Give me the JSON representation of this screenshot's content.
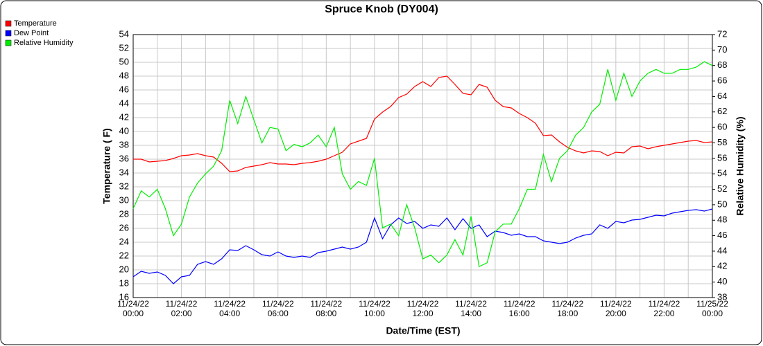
{
  "chart_data": {
    "type": "line",
    "title": "Spruce Knob (DY004)",
    "x_label": "Date/Time (EST)",
    "y_label": "Temperature ( F)",
    "y2_label": "Relative Humidity (%)",
    "grid": true,
    "legend": "top-left",
    "xlim": [
      "2022-11-24T00:00",
      "2022-11-25T00:00"
    ],
    "xticks": [
      {
        "value": "2022-11-24T00:00",
        "label": "11/24/22 00:00"
      },
      {
        "value": "2022-11-24T02:00",
        "label": "11/24/22 02:00"
      },
      {
        "value": "2022-11-24T04:00",
        "label": "11/24/22 04:00"
      },
      {
        "value": "2022-11-24T06:00",
        "label": "11/24/22 06:00"
      },
      {
        "value": "2022-11-24T08:00",
        "label": "11/24/22 08:00"
      },
      {
        "value": "2022-11-24T10:00",
        "label": "11/24/22 10:00"
      },
      {
        "value": "2022-11-24T12:00",
        "label": "11/24/22 12:00"
      },
      {
        "value": "2022-11-24T14:00",
        "label": "11/24/22 14:00"
      },
      {
        "value": "2022-11-24T16:00",
        "label": "11/24/22 16:00"
      },
      {
        "value": "2022-11-24T18:00",
        "label": "11/24/22 18:00"
      },
      {
        "value": "2022-11-24T20:00",
        "label": "11/24/22 20:00"
      },
      {
        "value": "2022-11-24T22:00",
        "label": "11/24/22 22:00"
      },
      {
        "value": "2022-11-25T00:00",
        "label": "11/25/22 00:00"
      }
    ],
    "ylim": [
      16,
      54
    ],
    "yticks": [
      16,
      18,
      20,
      22,
      24,
      26,
      28,
      30,
      32,
      34,
      36,
      38,
      40,
      42,
      44,
      46,
      48,
      50,
      52,
      54
    ],
    "y2lim": [
      38,
      72
    ],
    "y2ticks": [
      38,
      40,
      42,
      44,
      46,
      48,
      50,
      52,
      54,
      56,
      58,
      60,
      62,
      64,
      66,
      68,
      70,
      72
    ],
    "x": [
      "2022-11-24T00:00",
      "2022-11-24T00:20",
      "2022-11-24T00:40",
      "2022-11-24T01:00",
      "2022-11-24T01:20",
      "2022-11-24T01:40",
      "2022-11-24T02:00",
      "2022-11-24T02:20",
      "2022-11-24T02:40",
      "2022-11-24T03:00",
      "2022-11-24T03:20",
      "2022-11-24T03:40",
      "2022-11-24T04:00",
      "2022-11-24T04:20",
      "2022-11-24T04:40",
      "2022-11-24T05:00",
      "2022-11-24T05:20",
      "2022-11-24T05:40",
      "2022-11-24T06:00",
      "2022-11-24T06:20",
      "2022-11-24T06:40",
      "2022-11-24T07:00",
      "2022-11-24T07:20",
      "2022-11-24T07:40",
      "2022-11-24T08:00",
      "2022-11-24T08:20",
      "2022-11-24T08:40",
      "2022-11-24T09:00",
      "2022-11-24T09:20",
      "2022-11-24T09:40",
      "2022-11-24T10:00",
      "2022-11-24T10:20",
      "2022-11-24T10:40",
      "2022-11-24T11:00",
      "2022-11-24T11:20",
      "2022-11-24T11:40",
      "2022-11-24T12:00",
      "2022-11-24T12:20",
      "2022-11-24T12:40",
      "2022-11-24T13:00",
      "2022-11-24T13:20",
      "2022-11-24T13:40",
      "2022-11-24T14:00",
      "2022-11-24T14:20",
      "2022-11-24T14:40",
      "2022-11-24T15:00",
      "2022-11-24T15:20",
      "2022-11-24T15:40",
      "2022-11-24T16:00",
      "2022-11-24T16:20",
      "2022-11-24T16:40",
      "2022-11-24T17:00",
      "2022-11-24T17:20",
      "2022-11-24T17:40",
      "2022-11-24T18:00",
      "2022-11-24T18:20",
      "2022-11-24T18:40",
      "2022-11-24T19:00",
      "2022-11-24T19:20",
      "2022-11-24T19:40",
      "2022-11-24T20:00",
      "2022-11-24T20:20",
      "2022-11-24T20:40",
      "2022-11-24T21:00",
      "2022-11-24T21:20",
      "2022-11-24T21:40",
      "2022-11-24T22:00",
      "2022-11-24T22:20",
      "2022-11-24T22:40",
      "2022-11-24T23:00",
      "2022-11-24T23:20",
      "2022-11-24T23:40",
      "2022-11-25T00:00"
    ],
    "series": [
      {
        "name": "Temperature",
        "color": "#ff0000",
        "values": [
          36.0,
          36.0,
          35.6,
          35.7,
          35.8,
          36.1,
          36.5,
          36.6,
          36.8,
          36.5,
          36.3,
          35.4,
          34.2,
          34.3,
          34.8,
          35.0,
          35.2,
          35.5,
          35.3,
          35.3,
          35.2,
          35.4,
          35.5,
          35.7,
          36.0,
          36.5,
          37.0,
          38.2,
          38.6,
          39.0,
          41.8,
          42.8,
          43.6,
          44.9,
          45.4,
          46.5,
          47.2,
          46.5,
          47.8,
          48.0,
          46.8,
          45.5,
          45.3,
          46.8,
          46.4,
          44.5,
          43.6,
          43.4,
          42.6,
          42.0,
          41.2,
          39.4,
          39.5,
          38.5,
          37.7,
          37.2,
          36.9,
          37.2,
          37.1,
          36.5,
          37.0,
          36.9,
          37.8,
          37.9,
          37.5,
          37.8,
          38.0,
          38.2,
          38.4,
          38.6,
          38.7,
          38.4,
          38.5
        ]
      },
      {
        "name": "Dew Point",
        "color": "#0000ff",
        "values": [
          19.0,
          19.8,
          19.5,
          19.7,
          19.2,
          18.0,
          19.0,
          19.2,
          20.8,
          21.2,
          20.8,
          21.6,
          22.9,
          22.8,
          23.5,
          22.9,
          22.2,
          22.0,
          22.6,
          22.0,
          21.8,
          22.0,
          21.8,
          22.5,
          22.7,
          23.0,
          23.3,
          23.0,
          23.3,
          24.0,
          27.5,
          24.5,
          26.5,
          27.5,
          26.7,
          27.0,
          26.0,
          26.5,
          26.3,
          27.5,
          25.8,
          27.4,
          26.0,
          26.5,
          24.8,
          25.6,
          25.4,
          25.0,
          25.2,
          24.8,
          24.8,
          24.2,
          24.0,
          23.8,
          24.0,
          24.6,
          25.0,
          25.2,
          26.5,
          26.0,
          27.0,
          26.8,
          27.2,
          27.3,
          27.6,
          27.9,
          27.8,
          28.2,
          28.4,
          28.6,
          28.7,
          28.5,
          28.8
        ]
      },
      {
        "name": "Relative Humidity",
        "color": "#00ee00",
        "axis": "y2",
        "values": [
          49.5,
          51.8,
          51.0,
          52.0,
          49.5,
          46.0,
          47.5,
          51.0,
          52.8,
          54.0,
          55.0,
          57.0,
          63.5,
          60.5,
          64.0,
          61.0,
          58.0,
          60.0,
          59.8,
          57.0,
          57.8,
          57.5,
          58.0,
          59.0,
          57.5,
          60.0,
          54.0,
          52.0,
          53.0,
          52.5,
          56.0,
          47.0,
          47.5,
          46.0,
          50.0,
          47.0,
          43.0,
          43.5,
          42.5,
          43.5,
          45.5,
          43.5,
          48.5,
          42.0,
          42.5,
          46.5,
          47.5,
          47.5,
          49.5,
          52.0,
          52.0,
          56.5,
          53.0,
          56.0,
          57.0,
          59.0,
          60.0,
          62.0,
          63.0,
          67.5,
          63.5,
          67.0,
          64.0,
          66.0,
          67.0,
          67.5,
          67.0,
          67.0,
          67.5,
          67.5,
          67.8,
          68.5,
          68.0
        ]
      }
    ]
  }
}
